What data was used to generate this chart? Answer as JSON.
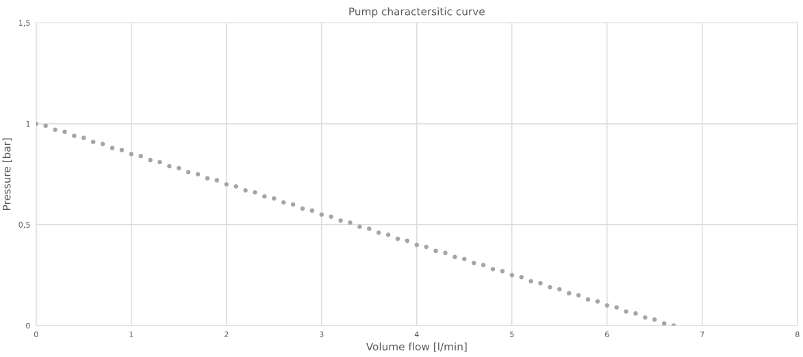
{
  "chart_data": {
    "type": "scatter",
    "title": "Pump charactersitic curve",
    "xlabel": "Volume flow [l/min]",
    "ylabel": "Pressure [bar]",
    "x": [
      0,
      0.1,
      0.2,
      0.3,
      0.4,
      0.5,
      0.6,
      0.7,
      0.8,
      0.9,
      1,
      1.1,
      1.2,
      1.3,
      1.4,
      1.5,
      1.6,
      1.7,
      1.8,
      1.9,
      2,
      2.1,
      2.2,
      2.3,
      2.4,
      2.5,
      2.6,
      2.7,
      2.8,
      2.9,
      3,
      3.1,
      3.2,
      3.3,
      3.4,
      3.5,
      3.6,
      3.7,
      3.8,
      3.9,
      4,
      4.1,
      4.2,
      4.3,
      4.4,
      4.5,
      4.6,
      4.7,
      4.8,
      4.9,
      5,
      5.1,
      5.2,
      5.3,
      5.4,
      5.5,
      5.6,
      5.7,
      5.8,
      5.9,
      6,
      6.1,
      6.2,
      6.3,
      6.4,
      6.5,
      6.6,
      6.7
    ],
    "series": [
      {
        "color": "#a5a5a5",
        "values": [
          1.0,
          0.99,
          0.97,
          0.96,
          0.94,
          0.93,
          0.91,
          0.9,
          0.88,
          0.87,
          0.85,
          0.84,
          0.82,
          0.81,
          0.79,
          0.78,
          0.76,
          0.75,
          0.73,
          0.72,
          0.7,
          0.69,
          0.67,
          0.66,
          0.64,
          0.63,
          0.61,
          0.6,
          0.58,
          0.57,
          0.55,
          0.54,
          0.52,
          0.51,
          0.49,
          0.48,
          0.46,
          0.45,
          0.43,
          0.42,
          0.4,
          0.39,
          0.37,
          0.36,
          0.34,
          0.33,
          0.31,
          0.3,
          0.28,
          0.27,
          0.25,
          0.24,
          0.22,
          0.21,
          0.19,
          0.18,
          0.16,
          0.15,
          0.13,
          0.12,
          0.1,
          0.09,
          0.07,
          0.06,
          0.04,
          0.03,
          0.01,
          0.0
        ]
      }
    ],
    "xlim": [
      0,
      8
    ],
    "xticks": [
      0,
      1,
      2,
      3,
      4,
      5,
      6,
      7,
      8
    ],
    "ylim": [
      0,
      1.5
    ],
    "yticks": [
      0,
      {
        "value": 0.5,
        "label": "0,5"
      },
      1,
      {
        "value": 1.5,
        "label": "1,5"
      }
    ],
    "grid": true,
    "marker": "circle",
    "legend": false
  }
}
